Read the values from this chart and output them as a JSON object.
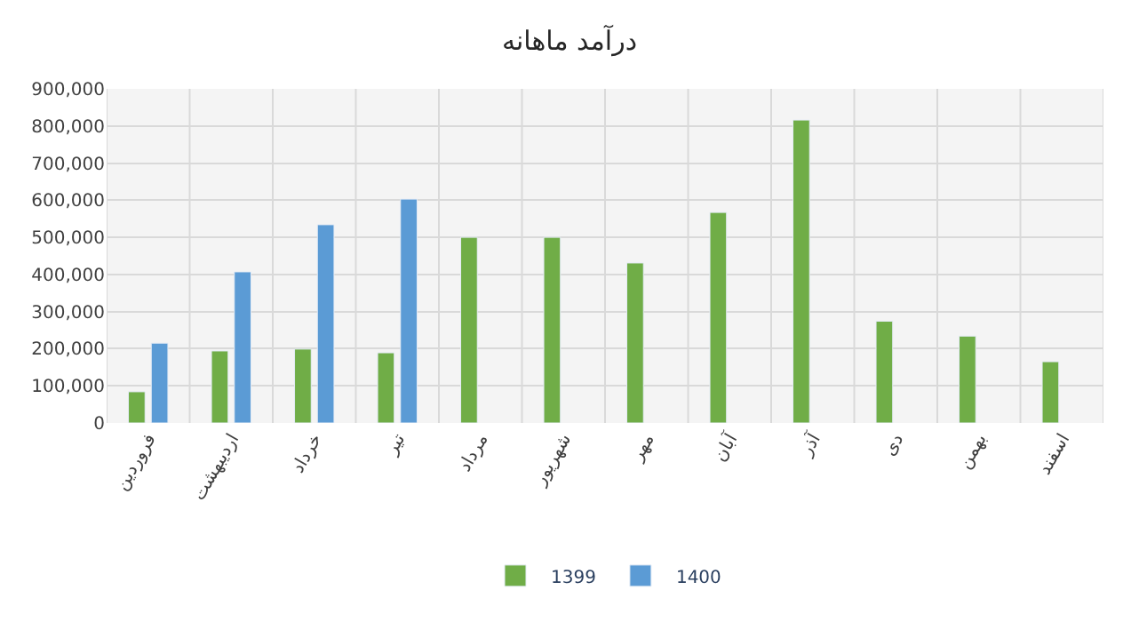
{
  "chart_data": {
    "type": "bar",
    "title": "درآمد ماهانه",
    "categories": [
      "فروردین",
      "اردیبهشت",
      "خرداد",
      "تیر",
      "مرداد",
      "شهریور",
      "مهر",
      "آبان",
      "آذر",
      "دی",
      "بهمن",
      "اسفند"
    ],
    "series": [
      {
        "name": "1399",
        "color": "#70ad47",
        "values": [
          84000,
          194000,
          199000,
          189000,
          500000,
          500000,
          431000,
          567000,
          816000,
          274000,
          234000,
          165000
        ]
      },
      {
        "name": "1400",
        "color": "#5b9bd5",
        "values": [
          215000,
          407000,
          534000,
          603000,
          null,
          null,
          null,
          null,
          null,
          null,
          null,
          null
        ]
      }
    ],
    "ylim": [
      0,
      900000
    ],
    "yticks": [
      {
        "value": 0,
        "label": "0"
      },
      {
        "value": 100000,
        "label": "100,000"
      },
      {
        "value": 200000,
        "label": "200,000"
      },
      {
        "value": 300000,
        "label": "300,000"
      },
      {
        "value": 400000,
        "label": "400,000"
      },
      {
        "value": 500000,
        "label": "500,000"
      },
      {
        "value": 600000,
        "label": "600,000"
      },
      {
        "value": 700000,
        "label": "700,000"
      },
      {
        "value": 800000,
        "label": "800,000"
      },
      {
        "value": 900000,
        "label": "900,000"
      }
    ],
    "grid": true,
    "legend": "bottom"
  }
}
